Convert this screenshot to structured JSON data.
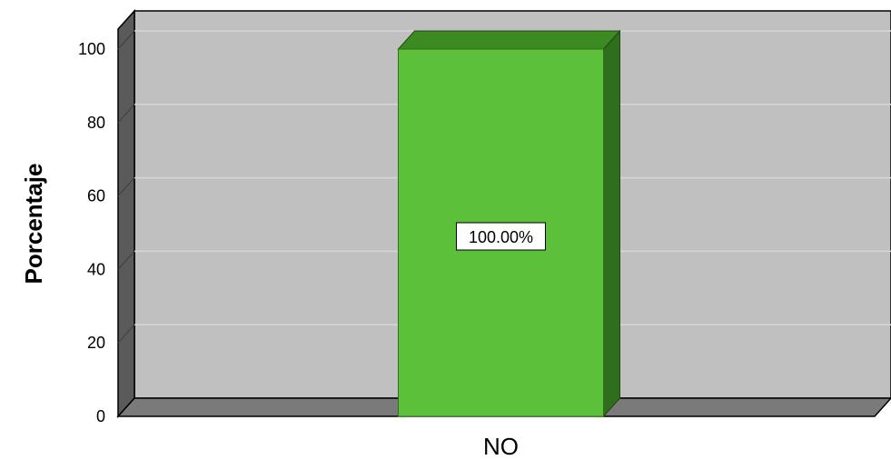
{
  "chart_data": {
    "type": "bar",
    "categories": [
      "NO"
    ],
    "values": [
      100
    ],
    "data_labels": [
      "100.00%"
    ],
    "ylabel": "Porcentaje",
    "xlabel": "",
    "ylim": [
      0,
      100
    ],
    "yticks": [
      "0",
      "20",
      "40",
      "60",
      "80",
      "100"
    ],
    "grid": true,
    "legend": "none",
    "colors": {
      "bar_front": "#5dc03a",
      "bar_top": "#3b8a22",
      "bar_side": "#2f6e1c",
      "plot_back": "#c0c0c0",
      "floor": "#7a7a7a",
      "left_wall": "#5a5a5a",
      "gridline": "#d6d6d6"
    }
  }
}
